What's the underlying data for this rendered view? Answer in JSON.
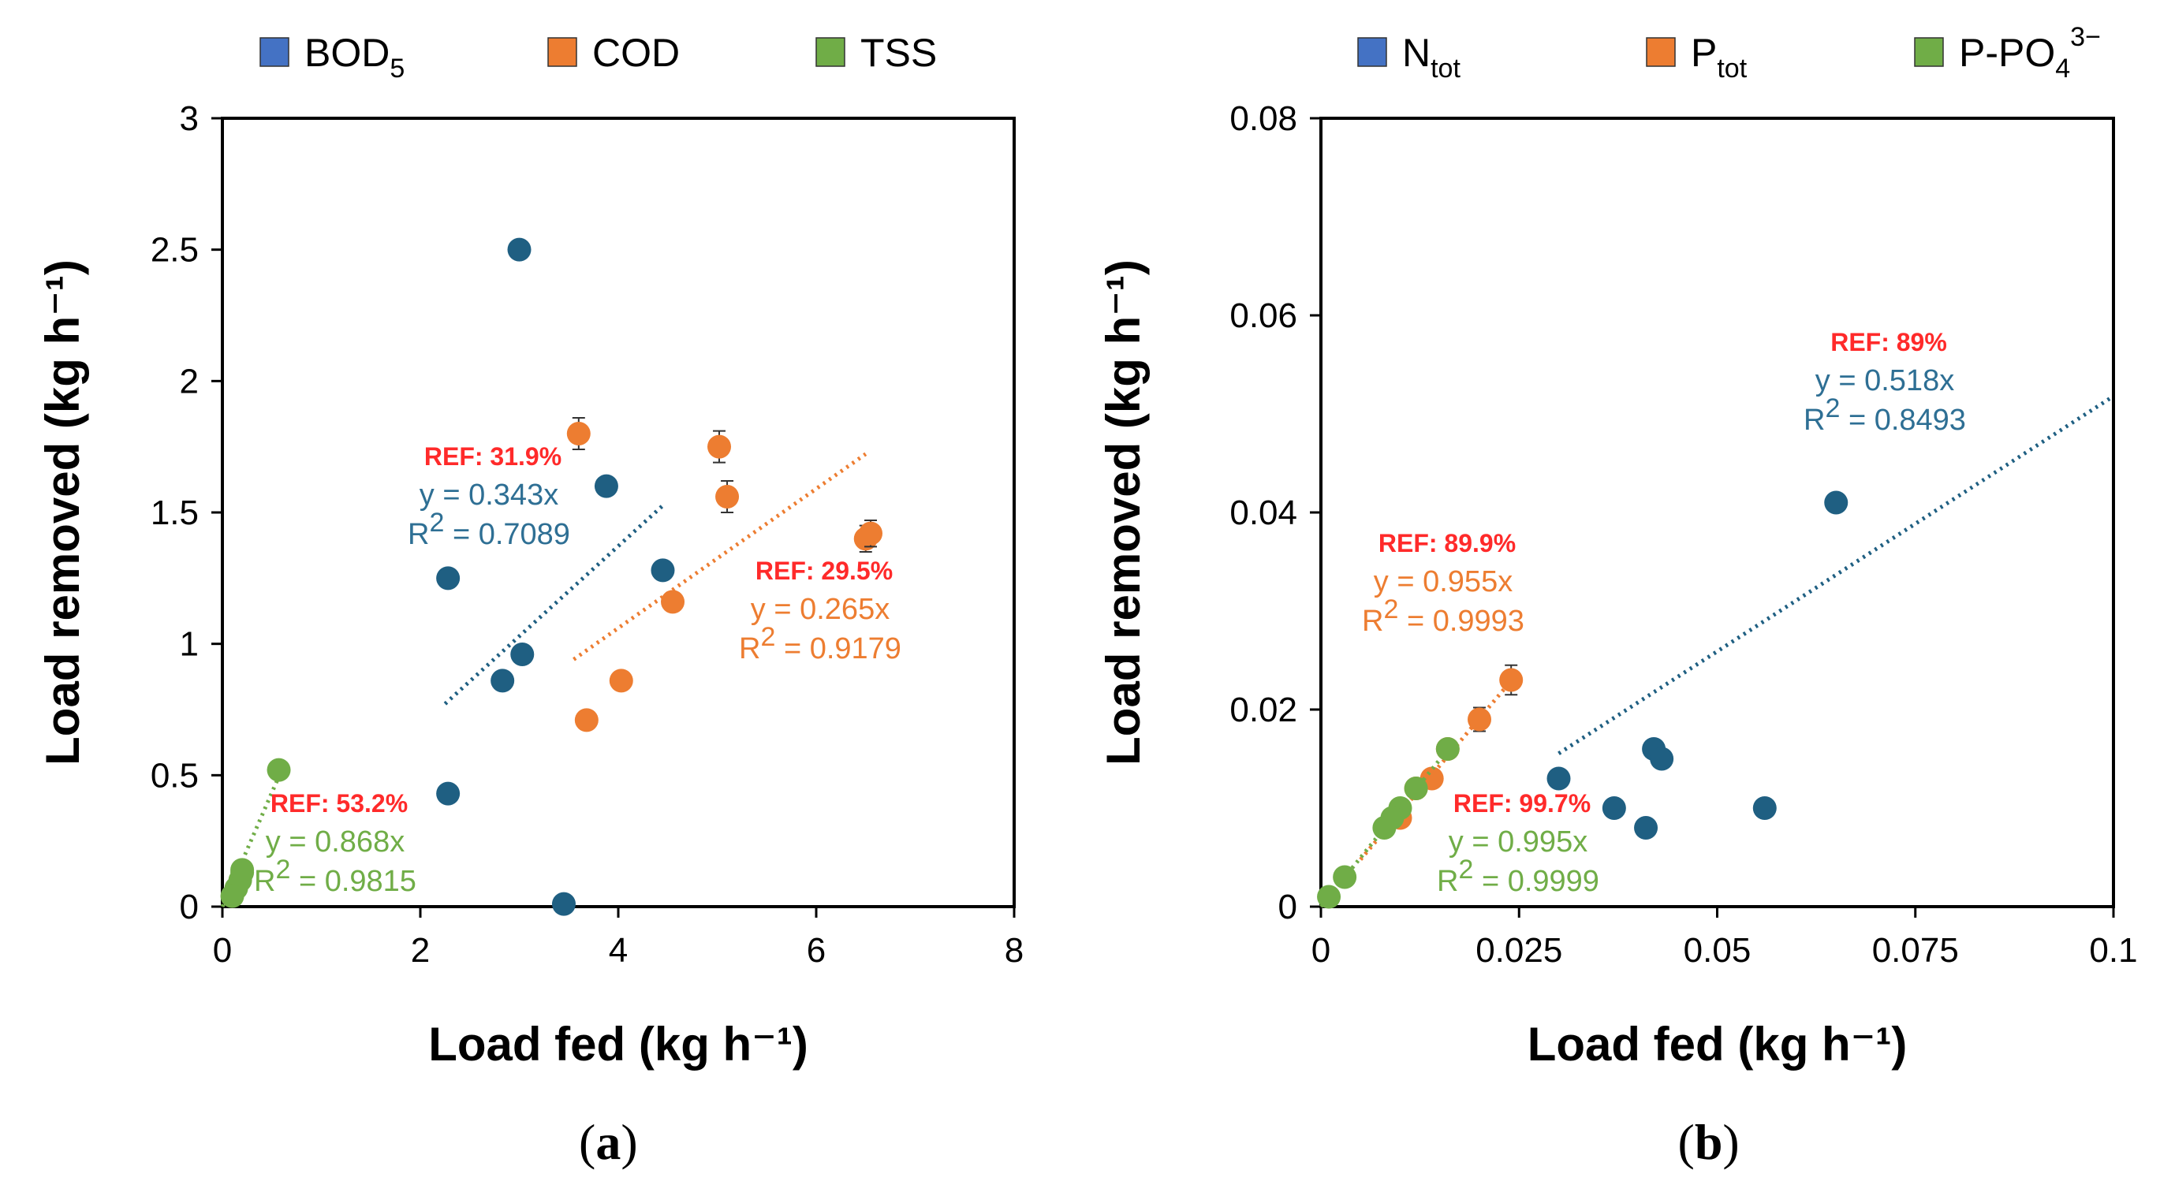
{
  "chart_data": [
    {
      "panel": "(a)",
      "panel_letter": "a",
      "type": "scatter",
      "xlabel": "Load fed (kg h⁻¹)",
      "ylabel": "Load removed (kg h⁻¹)",
      "xlim": [
        0,
        8
      ],
      "ylim": [
        0,
        3
      ],
      "xticks": [
        0,
        2,
        4,
        6,
        8
      ],
      "yticks": [
        0,
        0.5,
        1,
        1.5,
        2,
        2.5,
        3
      ],
      "xtick_labels": [
        "0",
        "2",
        "4",
        "6",
        "8"
      ],
      "ytick_labels": [
        "0",
        "0.5",
        "1",
        "1.5",
        "2",
        "2.5",
        "3"
      ],
      "legend": [
        {
          "label": "BOD",
          "sub": "5",
          "sup": "",
          "color": "#4472C4"
        },
        {
          "label": "COD",
          "sub": "",
          "sup": "",
          "color": "#ED7D31"
        },
        {
          "label": "TSS",
          "sub": "",
          "sup": "",
          "color": "#70AD47"
        }
      ],
      "series": [
        {
          "name": "BOD5",
          "color": "#1F5F82",
          "points": [
            [
              3.0,
              2.5
            ],
            [
              3.88,
              1.6
            ],
            [
              2.28,
              1.25
            ],
            [
              4.45,
              1.28
            ],
            [
              3.03,
              0.96
            ],
            [
              2.83,
              0.86
            ],
            [
              2.28,
              0.43
            ],
            [
              3.45,
              0.01
            ]
          ],
          "fit": {
            "slope": 0.343,
            "x_range": [
              2.25,
              4.45
            ]
          },
          "annotation": {
            "ref": "REF: 31.9%",
            "equation": "y = 0.343x",
            "r2_prefix": "R",
            "r2_value": " = 0.7089",
            "color": "#2E6F94"
          }
        },
        {
          "name": "COD",
          "color": "#ED7D31",
          "points": [
            [
              3.6,
              1.8
            ],
            [
              5.02,
              1.75
            ],
            [
              5.1,
              1.56
            ],
            [
              6.5,
              1.4
            ],
            [
              6.55,
              1.42
            ],
            [
              4.55,
              1.16
            ],
            [
              4.03,
              0.86
            ],
            [
              3.68,
              0.71
            ]
          ],
          "errors": [
            0.06,
            0.06,
            0.06,
            0.05,
            0.05,
            0.0,
            0.0,
            0.0
          ],
          "fit": {
            "slope": 0.265,
            "x_range": [
              3.55,
              6.5
            ]
          },
          "annotation": {
            "ref": "REF: 29.5%",
            "equation": "y = 0.265x",
            "r2_prefix": "R",
            "r2_value": " = 0.9179",
            "color": "#ED7D31"
          }
        },
        {
          "name": "TSS",
          "color": "#70AD47",
          "points": [
            [
              0.57,
              0.52
            ],
            [
              0.2,
              0.13
            ],
            [
              0.18,
              0.1
            ],
            [
              0.14,
              0.07
            ],
            [
              0.1,
              0.04
            ],
            [
              0.2,
              0.14
            ]
          ],
          "fit": {
            "slope": 0.868,
            "x_range": [
              0.0,
              0.6
            ]
          },
          "annotation": {
            "ref": "REF: 53.2%",
            "equation": "y = 0.868x",
            "r2_prefix": "R",
            "r2_value": " = 0.9815",
            "color": "#70AD47"
          }
        }
      ]
    },
    {
      "panel": "(b)",
      "panel_letter": "b",
      "type": "scatter",
      "xlabel": "Load fed (kg h⁻¹)",
      "ylabel": "Load removed (kg h⁻¹)",
      "xlim": [
        0,
        0.1
      ],
      "ylim": [
        0,
        0.08
      ],
      "xticks": [
        0,
        0.025,
        0.05,
        0.075,
        0.1
      ],
      "yticks": [
        0,
        0.02,
        0.04,
        0.06,
        0.08
      ],
      "xtick_labels": [
        "0",
        "0.025",
        "0.05",
        "0.075",
        "0.1"
      ],
      "ytick_labels": [
        "0",
        "0.02",
        "0.04",
        "0.06",
        "0.08"
      ],
      "legend": [
        {
          "label": "N",
          "sub": "tot",
          "sup": "",
          "color": "#4472C4"
        },
        {
          "label": "P",
          "sub": "tot",
          "sup": "",
          "color": "#ED7D31"
        },
        {
          "label": "P-PO",
          "sub": "4",
          "sup": "3−",
          "color": "#70AD47"
        }
      ],
      "series": [
        {
          "name": "Ntot",
          "color": "#1F5F82",
          "points": [
            [
              0.065,
              0.041
            ],
            [
              0.042,
              0.016
            ],
            [
              0.043,
              0.015
            ],
            [
              0.03,
              0.013
            ],
            [
              0.037,
              0.01
            ],
            [
              0.056,
              0.01
            ],
            [
              0.041,
              0.008
            ]
          ],
          "fit": {
            "slope": 0.518,
            "x_range": [
              0.03,
              0.1
            ]
          },
          "annotation": {
            "ref": "REF: 89%",
            "equation": "y = 0.518x",
            "r2_prefix": "R",
            "r2_value": " = 0.8493",
            "color": "#2E6F94"
          }
        },
        {
          "name": "Ptot",
          "color": "#ED7D31",
          "points": [
            [
              0.024,
              0.023
            ],
            [
              0.02,
              0.019
            ],
            [
              0.016,
              0.016
            ],
            [
              0.014,
              0.013
            ],
            [
              0.012,
              0.012
            ],
            [
              0.01,
              0.009
            ]
          ],
          "errors": [
            0.0015,
            0.0012,
            0.0,
            0.0,
            0.0,
            0.0
          ],
          "fit": {
            "slope": 0.955,
            "x_range": [
              0.005,
              0.025
            ]
          },
          "annotation": {
            "ref": "REF: 89.9%",
            "equation": "y = 0.955x",
            "r2_prefix": "R",
            "r2_value": " = 0.9993",
            "color": "#ED7D31"
          }
        },
        {
          "name": "P-PO4",
          "color": "#70AD47",
          "points": [
            [
              0.016,
              0.016
            ],
            [
              0.012,
              0.012
            ],
            [
              0.01,
              0.01
            ],
            [
              0.009,
              0.009
            ],
            [
              0.008,
              0.008
            ],
            [
              0.003,
              0.003
            ],
            [
              0.001,
              0.001
            ]
          ],
          "fit": {
            "slope": 0.995,
            "x_range": [
              0.0,
              0.016
            ]
          },
          "annotation": {
            "ref": "REF: 99.7%",
            "equation": "y = 0.995x",
            "r2_prefix": "R",
            "r2_value": " = 0.9999",
            "color": "#70AD47"
          }
        }
      ]
    }
  ]
}
